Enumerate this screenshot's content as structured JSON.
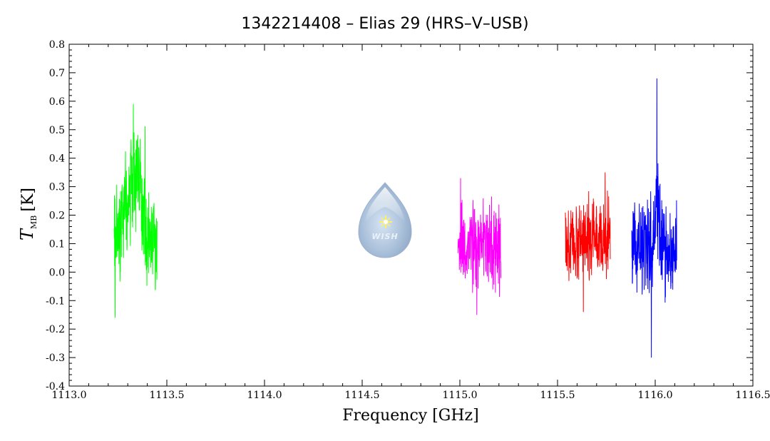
{
  "chart_data": {
    "type": "line",
    "title": "1342214408 – Elias 29 (HRS–V–USB)",
    "xlabel": "Frequency [GHz]",
    "ylabel": {
      "main": "T",
      "sub": "MB",
      "unit": "[K]"
    },
    "xlim": [
      1113.0,
      1116.5
    ],
    "ylim": [
      -0.4,
      0.8
    ],
    "x_ticks": [
      "1113.0",
      "1113.5",
      "1114.0",
      "1114.5",
      "1115.0",
      "1115.5",
      "1116.0",
      "1116.5"
    ],
    "y_ticks": [
      "-0.4",
      "-0.3",
      "-0.2",
      "-0.1",
      "0.0",
      "0.1",
      "0.2",
      "0.3",
      "0.4",
      "0.5",
      "0.6",
      "0.7",
      "0.8"
    ],
    "grid": false,
    "logo": {
      "text": "WISH"
    },
    "series": [
      {
        "color": "#00ff00",
        "x_start": 1113.23,
        "x_end": 1113.45,
        "baseline": 0.12,
        "noise": 0.09,
        "min": -0.16,
        "max": 0.59,
        "peak_x": 1113.33,
        "peak_amp": 0.22,
        "peak_width": 0.05
      },
      {
        "color": "#ff00ff",
        "x_start": 1114.99,
        "x_end": 1115.21,
        "baseline": 0.09,
        "noise": 0.07,
        "min": -0.15,
        "max": 0.33,
        "peak_x": 1115.1,
        "peak_amp": 0.0,
        "peak_width": 0.05
      },
      {
        "color": "#ff0000",
        "x_start": 1115.54,
        "x_end": 1115.77,
        "baseline": 0.11,
        "noise": 0.07,
        "min": -0.14,
        "max": 0.35,
        "peak_x": 1115.65,
        "peak_amp": 0.0,
        "peak_width": 0.05
      },
      {
        "color": "#0000ff",
        "x_start": 1115.88,
        "x_end": 1116.11,
        "baseline": 0.08,
        "noise": 0.08,
        "min": -0.3,
        "max": 0.68,
        "peak_x": 1116.01,
        "peak_amp": 0.2,
        "peak_width": 0.015
      }
    ]
  }
}
